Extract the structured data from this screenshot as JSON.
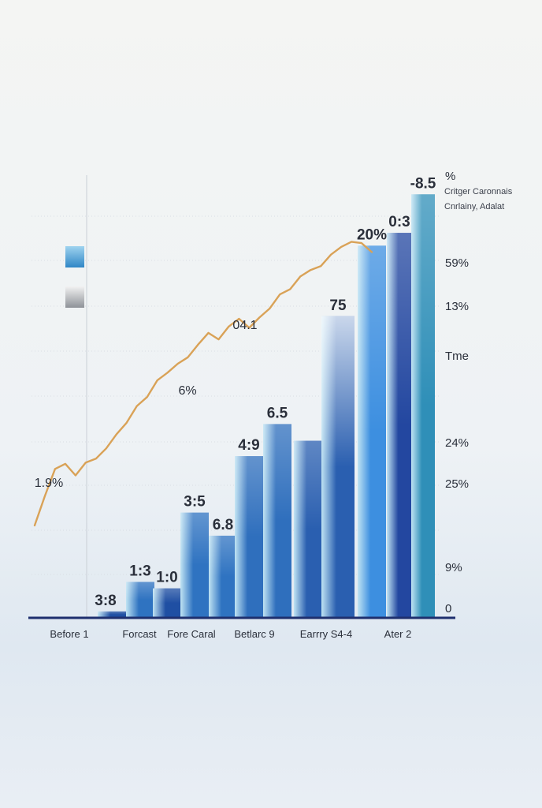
{
  "chart_data": {
    "type": "bar",
    "title": "",
    "xlabel": "",
    "ylabel": "",
    "x_tick_labels": [
      "Before 1",
      "Forcast",
      "Fore Caral",
      "Betlarc 9",
      "Earrry S4-4",
      "Ater 2"
    ],
    "right_axis_labels": [
      "%",
      "59%",
      "13%",
      "Tme",
      "24%",
      "25%",
      "9%",
      "0"
    ],
    "legend_text": [
      "Critger Caronnais",
      "Cnrlainy, Adalat"
    ],
    "bars": [
      {
        "label": "3:8",
        "value": 0.5,
        "color": "#1f4fa3"
      },
      {
        "label": "1:3",
        "value": 2.8,
        "color": "#2f73c1"
      },
      {
        "label": "1:0",
        "value": 2.3,
        "color": "#1f4fa3"
      },
      {
        "label": "3:5",
        "value": 8.2,
        "color": "#2f73c1"
      },
      {
        "label": "6.8",
        "value": 6.4,
        "color": "#2f73c1"
      },
      {
        "label": "4:9",
        "value": 12.6,
        "color": "#2f6fbd"
      },
      {
        "label": "6.5",
        "value": 15.1,
        "color": "#2f6fbd"
      },
      {
        "label": "",
        "value": 13.8,
        "color": "#2a5fb0"
      },
      {
        "label": "75",
        "value": 23.5,
        "color": "#2a5fb0"
      },
      {
        "label": "20%",
        "value": 29.0,
        "color": "#3d8fe0"
      },
      {
        "label": "0:3",
        "value": 30.0,
        "color": "#2347a0"
      },
      {
        "label": "-8.5",
        "value": 33.0,
        "color": "#2f8fb8"
      }
    ],
    "line": {
      "color": "#d9a257",
      "labels": [
        "1.9%",
        "6%",
        "04.1"
      ],
      "values": [
        7.2,
        9.5,
        11.6,
        12.0,
        11.1,
        12.1,
        12.4,
        13.2,
        14.3,
        15.2,
        16.5,
        17.2,
        18.5,
        19.1,
        19.8,
        20.3,
        21.3,
        22.2,
        21.7,
        22.7,
        23.3,
        22.6,
        23.4,
        24.1,
        25.2,
        25.6,
        26.6,
        27.1,
        27.4,
        28.3,
        28.9,
        29.3,
        29.2,
        28.5
      ]
    },
    "ylim": [
      0,
      34
    ],
    "grid": true
  }
}
